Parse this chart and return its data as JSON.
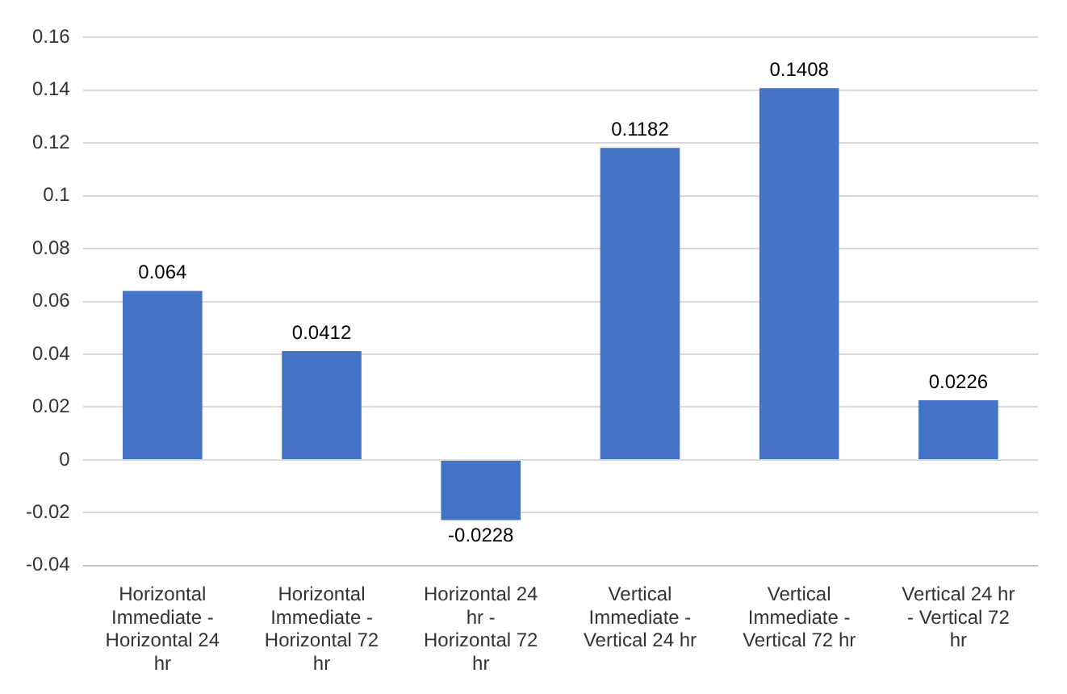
{
  "chart_data": {
    "type": "bar",
    "categories": [
      "Horizontal Immediate - Horizontal 24 hr",
      "Horizontal Immediate - Horizontal 72 hr",
      "Horizontal 24 hr - Horizontal 72 hr",
      "Vertical Immediate - Vertical 24 hr",
      "Vertical Immediate - Vertical 72 hr",
      "Vertical 24 hr - Vertical 72 hr"
    ],
    "values": [
      0.064,
      0.0412,
      -0.0228,
      0.1182,
      0.1408,
      0.0226
    ],
    "color": "#4472c4",
    "ylim": [
      -0.04,
      0.16
    ],
    "yticks": [
      -0.04,
      -0.02,
      0,
      0.02,
      0.04,
      0.06,
      0.08,
      0.1,
      0.12,
      0.14,
      0.16
    ],
    "grid": "y",
    "data_labels": true
  }
}
